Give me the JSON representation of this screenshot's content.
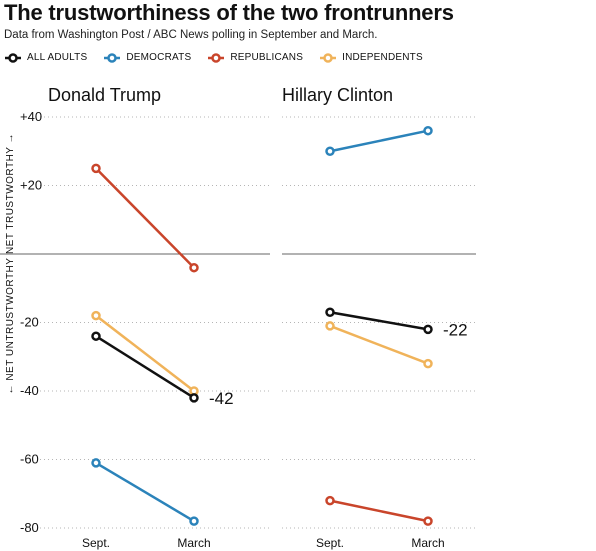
{
  "header": {
    "title": "The trustworthiness of the two frontrunners",
    "subtitle": "Data from Washington Post / ABC News polling in September and March."
  },
  "colors": {
    "all_adults": "#111111",
    "democrats": "#2b83ba",
    "republicans": "#c9452b",
    "independents": "#f0b35a"
  },
  "legend": [
    {
      "label": "ALL ADULTS",
      "key": "all_adults"
    },
    {
      "label": "DEMOCRATS",
      "key": "democrats"
    },
    {
      "label": "REPUBLICANS",
      "key": "republicans"
    },
    {
      "label": "INDEPENDENTS",
      "key": "independents"
    }
  ],
  "chart_data": {
    "type": "line",
    "ylabel_top": "NET TRUSTWORTHY →",
    "ylabel_bottom": "← NET UNTRUSTWORTHY",
    "ylim": [
      -80,
      40
    ],
    "yticks": [
      40,
      20,
      -20,
      -40,
      -60,
      -80
    ],
    "ytick_labels": [
      "+40",
      "+20",
      "-20",
      "-40",
      "-60",
      "-80"
    ],
    "x": [
      "Sept.",
      "March"
    ],
    "panels": [
      {
        "title": "Donald Trump",
        "series": [
          {
            "key": "republicans",
            "values": [
              25,
              -4
            ]
          },
          {
            "key": "independents",
            "values": [
              -18,
              -40
            ]
          },
          {
            "key": "all_adults",
            "values": [
              -24,
              -42
            ],
            "end_label": "-42"
          },
          {
            "key": "democrats",
            "values": [
              -61,
              -78
            ]
          }
        ]
      },
      {
        "title": "Hillary Clinton",
        "series": [
          {
            "key": "democrats",
            "values": [
              30,
              36
            ]
          },
          {
            "key": "all_adults",
            "values": [
              -17,
              -22
            ],
            "end_label": "-22"
          },
          {
            "key": "independents",
            "values": [
              -21,
              -32
            ]
          },
          {
            "key": "republicans",
            "values": [
              -72,
              -78
            ]
          }
        ]
      }
    ]
  }
}
